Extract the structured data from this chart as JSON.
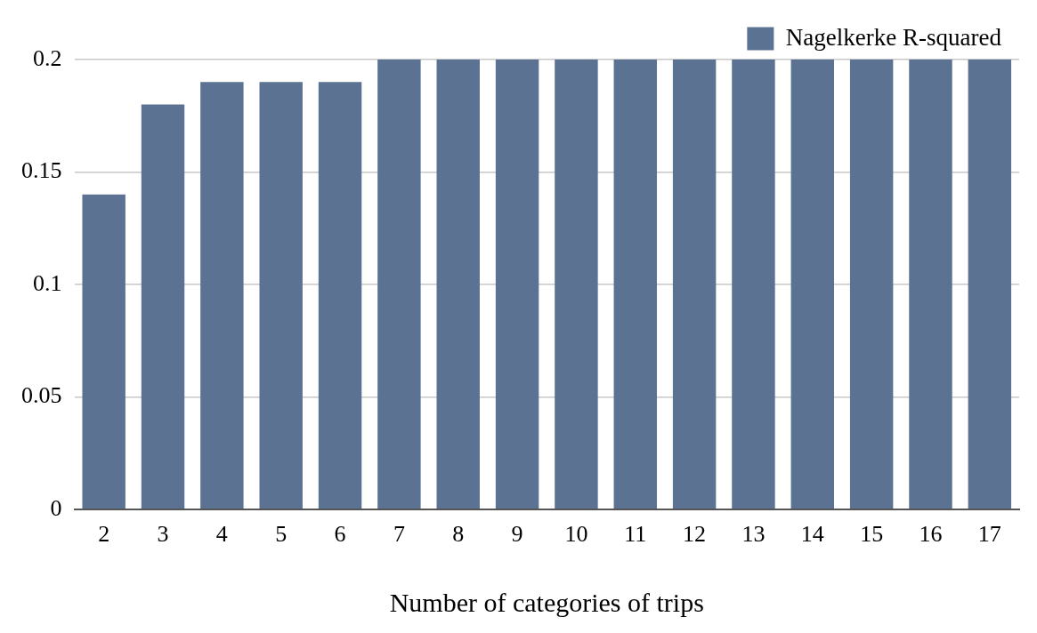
{
  "chart_data": {
    "type": "bar",
    "xlabel": "Number of categories of trips",
    "categories": [
      "2",
      "3",
      "4",
      "5",
      "6",
      "7",
      "8",
      "9",
      "10",
      "11",
      "12",
      "13",
      "14",
      "15",
      "16",
      "17"
    ],
    "series": [
      {
        "name": "Nagelkerke R-squared",
        "color": "#5b7292",
        "values": [
          0.14,
          0.18,
          0.19,
          0.19,
          0.19,
          0.2,
          0.2,
          0.2,
          0.2,
          0.2,
          0.2,
          0.2,
          0.2,
          0.2,
          0.2,
          0.2
        ]
      }
    ],
    "ylim": [
      0,
      0.2
    ],
    "yticks": [
      0,
      0.05,
      0.1,
      0.15,
      0.2
    ],
    "grid": "y",
    "legend": "top right"
  }
}
